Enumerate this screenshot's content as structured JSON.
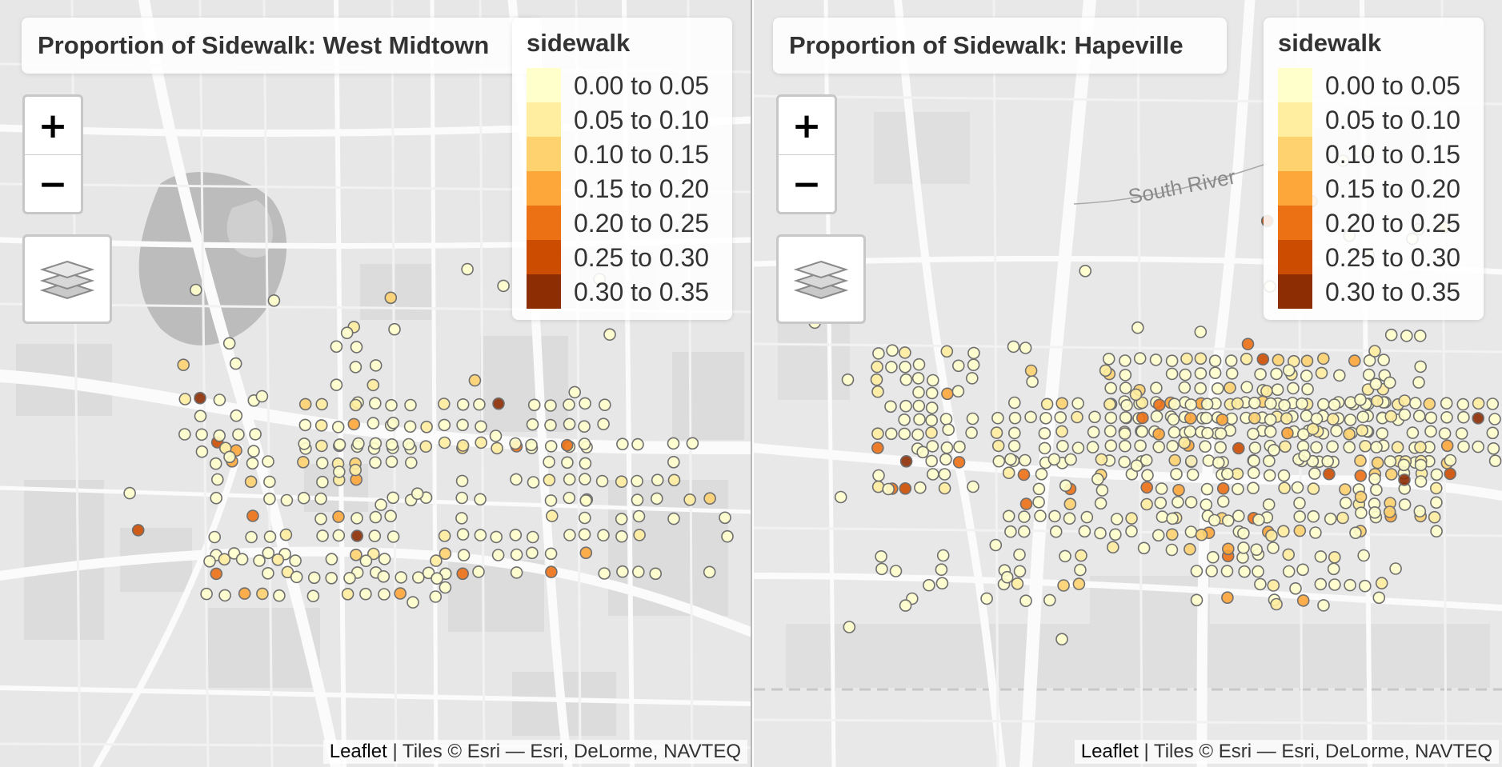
{
  "maps": [
    {
      "title": "Proportion of Sidewalk: West Midtown",
      "region": "left",
      "seed": 7,
      "legend": {
        "title": "sidewalk",
        "items": [
          {
            "label": "0.00 to 0.05",
            "color": "#FFFFCC"
          },
          {
            "label": "0.05 to 0.10",
            "color": "#FFEDA0"
          },
          {
            "label": "0.10 to 0.15",
            "color": "#FED26F"
          },
          {
            "label": "0.15 to 0.20",
            "color": "#FDA63A"
          },
          {
            "label": "0.20 to 0.25",
            "color": "#EC7014"
          },
          {
            "label": "0.25 to 0.30",
            "color": "#CC4C02"
          },
          {
            "label": "0.30 to 0.35",
            "color": "#8C2D04"
          }
        ]
      },
      "zoom": {
        "in_label": "+",
        "out_label": "−"
      },
      "layers_icon": "layers-icon",
      "attribution": {
        "leaflet": "Leaflet",
        "text": " | Tiles © Esri — Esri, DeLorme, NAVTEQ"
      }
    },
    {
      "title": "Proportion of Sidewalk: Hapeville",
      "region": "right",
      "seed": 21,
      "map_label": "South River",
      "legend": {
        "title": "sidewalk",
        "items": [
          {
            "label": "0.00 to 0.05",
            "color": "#FFFFCC"
          },
          {
            "label": "0.05 to 0.10",
            "color": "#FFEDA0"
          },
          {
            "label": "0.10 to 0.15",
            "color": "#FED26F"
          },
          {
            "label": "0.15 to 0.20",
            "color": "#FDA63A"
          },
          {
            "label": "0.20 to 0.25",
            "color": "#EC7014"
          },
          {
            "label": "0.25 to 0.30",
            "color": "#CC4C02"
          },
          {
            "label": "0.30 to 0.35",
            "color": "#8C2D04"
          }
        ]
      },
      "zoom": {
        "in_label": "+",
        "out_label": "−"
      },
      "layers_icon": "layers-icon",
      "attribution": {
        "leaflet": "Leaflet",
        "text": " | Tiles © Esri — Esri, DeLorme, NAVTEQ"
      }
    }
  ]
}
